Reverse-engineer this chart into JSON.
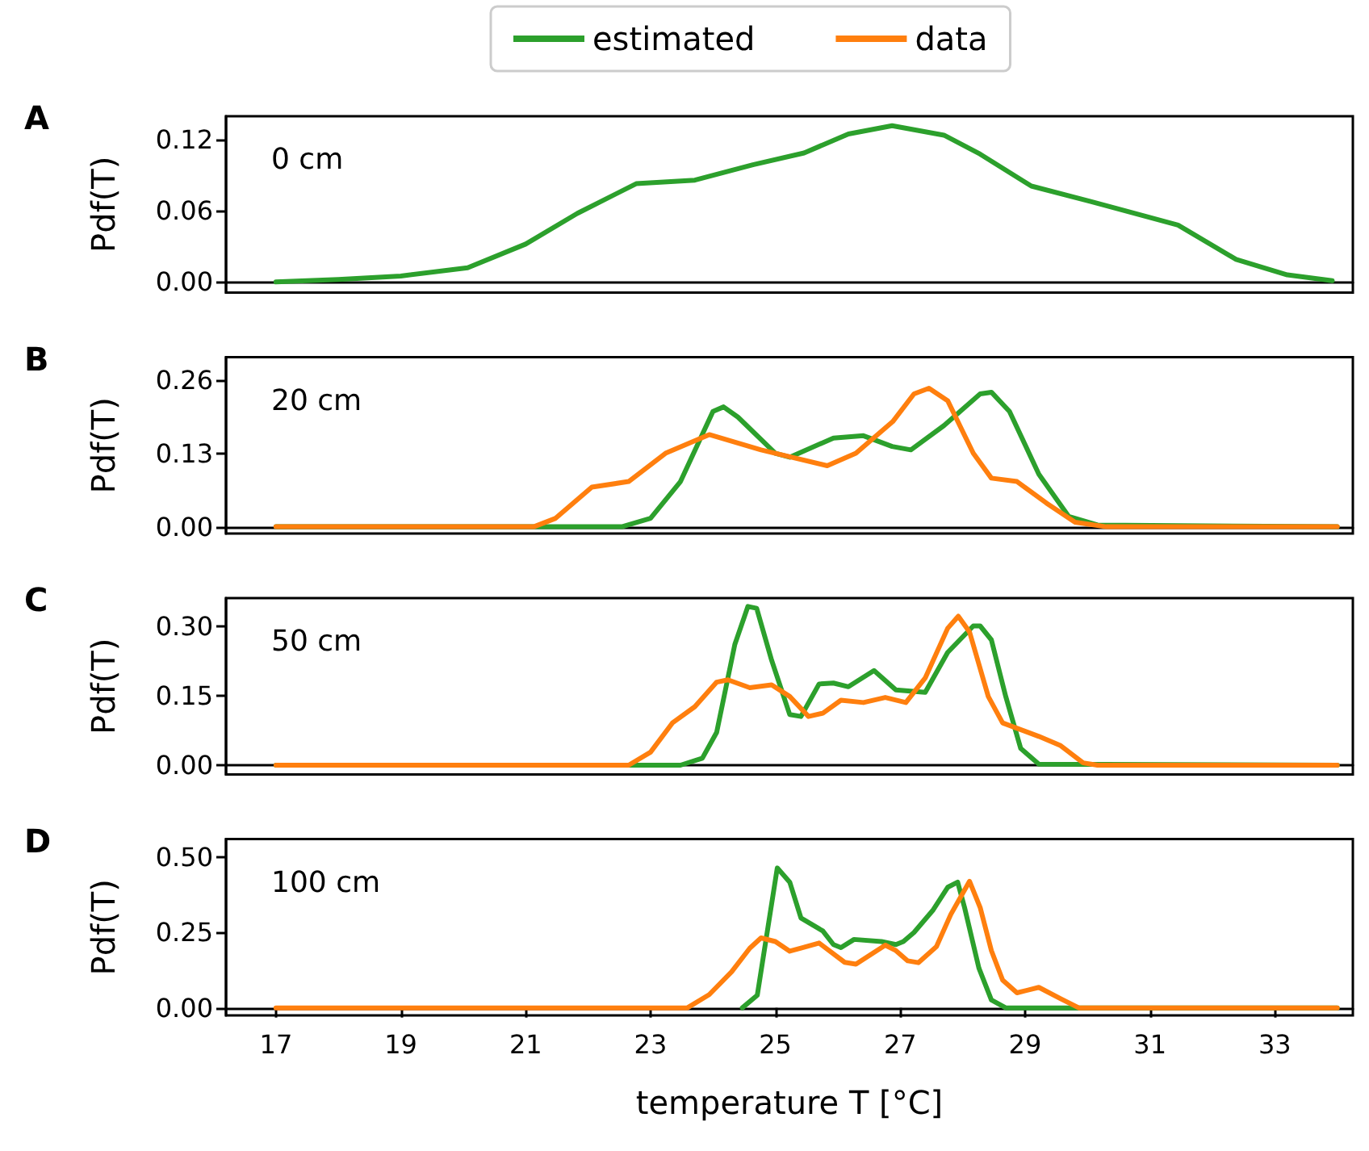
{
  "chart_data": [
    {
      "type": "line",
      "title": "A",
      "ylabel": "Pdf(T)",
      "annotations": [
        "0 cm"
      ],
      "legend": "top",
      "tick_labels": "y",
      "xlim": [
        16.2,
        34.25
      ],
      "xticks": [
        17,
        19,
        21,
        23,
        25,
        27,
        29,
        31,
        33
      ],
      "ylim": [
        -0.009,
        0.14
      ],
      "yticks": [
        {
          "value": 0,
          "label": "0.00"
        },
        {
          "value": 0.06,
          "label": "0.06"
        },
        {
          "value": 0.12,
          "label": "0.12"
        }
      ],
      "series": [
        {
          "name": "estimated",
          "color": "#2ca02c",
          "x": [
            17,
            18,
            19,
            20.07,
            21,
            21.83,
            22.77,
            23.71,
            24.64,
            25.46,
            26.17,
            26.87,
            27.7,
            28.28,
            29.1,
            30.05,
            31.45,
            32.38,
            33.2,
            33.92
          ],
          "values": [
            0,
            0.002,
            0.005,
            0.012,
            0.032,
            0.058,
            0.083,
            0.086,
            0.099,
            0.109,
            0.125,
            0.132,
            0.124,
            0.108,
            0.081,
            0.068,
            0.048,
            0.019,
            0.006,
            0.001
          ]
        }
      ]
    },
    {
      "type": "line",
      "title": "B",
      "ylabel": "Pdf(T)",
      "annotations": [
        "20 cm"
      ],
      "tick_labels": "y",
      "xlim": [
        16.2,
        34.25
      ],
      "xticks": [
        17,
        19,
        21,
        23,
        25,
        27,
        29,
        31,
        33
      ],
      "ylim": [
        -0.012,
        0.3
      ],
      "yticks": [
        {
          "value": 0,
          "label": "0.00"
        },
        {
          "value": 0.13,
          "label": "0.13"
        },
        {
          "value": 0.26,
          "label": "0.26"
        }
      ],
      "series": [
        {
          "name": "estimated",
          "color": "#2ca02c",
          "x": [
            17,
            22.54,
            23.0,
            23.48,
            24.0,
            24.17,
            24.4,
            25.0,
            25.23,
            25.93,
            26.41,
            26.87,
            27.17,
            27.7,
            28.28,
            28.46,
            28.75,
            29.22,
            29.7,
            30.16,
            34
          ],
          "values": [
            0,
            0,
            0.015,
            0.08,
            0.204,
            0.212,
            0.194,
            0.13,
            0.123,
            0.157,
            0.161,
            0.142,
            0.136,
            0.179,
            0.235,
            0.238,
            0.204,
            0.093,
            0.018,
            0.003,
            0
          ]
        },
        {
          "name": "data",
          "color": "#ff7f0e",
          "x": [
            17,
            21.13,
            21.48,
            22.06,
            22.65,
            23.24,
            23.94,
            24.77,
            25.83,
            26.29,
            26.88,
            27.22,
            27.46,
            27.76,
            28.17,
            28.46,
            28.87,
            29.34,
            29.8,
            30.3,
            34
          ],
          "values": [
            0,
            0,
            0.015,
            0.07,
            0.08,
            0.13,
            0.163,
            0.136,
            0.108,
            0.13,
            0.186,
            0.235,
            0.245,
            0.223,
            0.13,
            0.086,
            0.08,
            0.042,
            0.008,
            0,
            0
          ]
        }
      ]
    },
    {
      "type": "line",
      "title": "C",
      "ylabel": "Pdf(T)",
      "annotations": [
        "50 cm"
      ],
      "tick_labels": "y",
      "xlim": [
        16.2,
        34.25
      ],
      "xticks": [
        17,
        19,
        21,
        23,
        25,
        27,
        29,
        31,
        33
      ],
      "ylim": [
        -0.02,
        0.36
      ],
      "yticks": [
        {
          "value": 0,
          "label": "0.00"
        },
        {
          "value": 0.15,
          "label": "0.15"
        },
        {
          "value": 0.3,
          "label": "0.30"
        }
      ],
      "series": [
        {
          "name": "estimated",
          "color": "#2ca02c",
          "x": [
            17,
            23.48,
            23.83,
            24.06,
            24.35,
            24.56,
            24.7,
            24.94,
            25.23,
            25.41,
            25.7,
            25.93,
            26.17,
            26.58,
            26.93,
            27.4,
            27.76,
            28.17,
            28.28,
            28.46,
            28.69,
            28.93,
            29.22,
            34
          ],
          "values": [
            0,
            0,
            0.015,
            0.071,
            0.26,
            0.342,
            0.338,
            0.226,
            0.109,
            0.105,
            0.175,
            0.177,
            0.169,
            0.204,
            0.162,
            0.157,
            0.243,
            0.3,
            0.3,
            0.27,
            0.148,
            0.036,
            0.002,
            0
          ]
        },
        {
          "name": "data",
          "color": "#ff7f0e",
          "x": [
            17,
            22.65,
            23.0,
            23.35,
            23.71,
            24.06,
            24.24,
            24.59,
            24.94,
            25.23,
            25.53,
            25.76,
            26.05,
            26.41,
            26.76,
            27.09,
            27.4,
            27.76,
            27.93,
            28.11,
            28.41,
            28.64,
            29.22,
            29.57,
            29.93,
            30.16,
            34
          ],
          "values": [
            0,
            0,
            0.028,
            0.091,
            0.126,
            0.179,
            0.184,
            0.167,
            0.173,
            0.148,
            0.105,
            0.112,
            0.14,
            0.135,
            0.146,
            0.135,
            0.188,
            0.295,
            0.321,
            0.287,
            0.148,
            0.091,
            0.062,
            0.042,
            0.005,
            0,
            0
          ]
        }
      ]
    },
    {
      "type": "line",
      "title": "D",
      "ylabel": "Pdf(T)",
      "xlabel": "temperature T [°C]",
      "annotations": [
        "100 cm"
      ],
      "xlim": [
        16.2,
        34.25
      ],
      "xticks": [
        17,
        19,
        21,
        23,
        25,
        27,
        29,
        31,
        33
      ],
      "ylim": [
        -0.025,
        0.56
      ],
      "yticks": [
        {
          "value": 0,
          "label": "0.00"
        },
        {
          "value": 0.25,
          "label": "0.25"
        },
        {
          "value": 0.5,
          "label": "0.50"
        }
      ],
      "series": [
        {
          "name": "estimated",
          "color": "#2ca02c",
          "x": [
            24.47,
            24.71,
            25.03,
            25.23,
            25.41,
            25.76,
            25.93,
            26.05,
            26.26,
            26.7,
            26.93,
            27.05,
            27.22,
            27.52,
            27.76,
            27.92,
            28.03,
            28.26,
            28.46,
            28.69,
            34
          ],
          "values": [
            0,
            0.042,
            0.464,
            0.417,
            0.298,
            0.255,
            0.21,
            0.2,
            0.227,
            0.22,
            0.21,
            0.22,
            0.25,
            0.323,
            0.4,
            0.417,
            0.333,
            0.132,
            0.026,
            0,
            0
          ]
        },
        {
          "name": "data",
          "color": "#ff7f0e",
          "x": [
            17,
            23.59,
            23.94,
            24.3,
            24.59,
            24.77,
            25.0,
            25.23,
            25.41,
            25.7,
            26.11,
            26.29,
            26.76,
            26.93,
            27.12,
            27.29,
            27.58,
            27.81,
            28.11,
            28.28,
            28.46,
            28.64,
            28.87,
            29.22,
            29.57,
            29.86,
            34
          ],
          "values": [
            0,
            0,
            0.044,
            0.12,
            0.198,
            0.232,
            0.22,
            0.188,
            0.198,
            0.215,
            0.151,
            0.145,
            0.208,
            0.19,
            0.156,
            0.15,
            0.203,
            0.31,
            0.42,
            0.333,
            0.19,
            0.092,
            0.05,
            0.068,
            0.03,
            0,
            0
          ]
        }
      ]
    }
  ]
}
